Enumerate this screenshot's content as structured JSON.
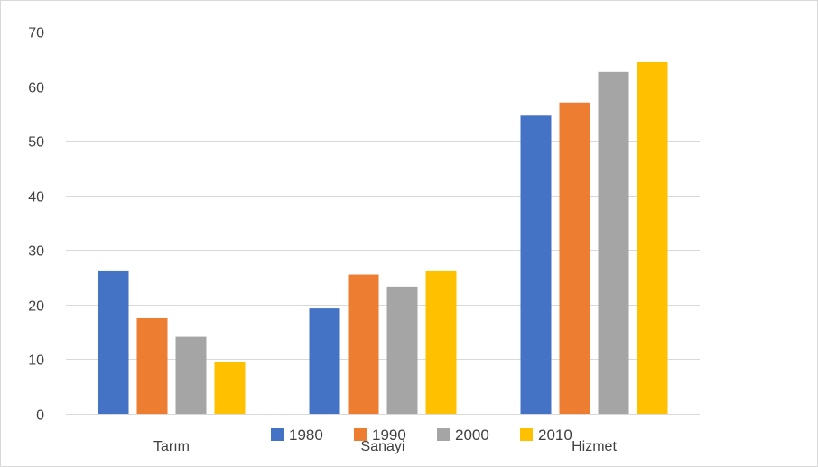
{
  "chart_data": {
    "type": "bar",
    "categories": [
      "Tarım",
      "Sanayi",
      "Hizmet"
    ],
    "series": [
      {
        "name": "1980",
        "color": "#4472C4",
        "values": [
          26.1,
          19.3,
          54.6
        ]
      },
      {
        "name": "1990",
        "color": "#ED7D31",
        "values": [
          17.5,
          25.5,
          57.0
        ]
      },
      {
        "name": "2000",
        "color": "#A5A5A5",
        "values": [
          14.1,
          23.3,
          62.6
        ]
      },
      {
        "name": "2010",
        "color": "#FFC000",
        "values": [
          9.5,
          26.1,
          64.4
        ]
      }
    ],
    "ylim": [
      0,
      70
    ],
    "yticks": [
      0,
      10,
      20,
      30,
      40,
      50,
      60,
      70
    ],
    "grid": true,
    "legend_position": "bottom"
  }
}
